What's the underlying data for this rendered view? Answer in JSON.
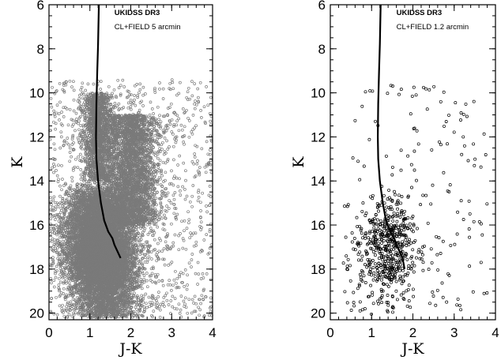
{
  "chart_data": [
    {
      "type": "scatter",
      "title": "",
      "annotation_line1": "UKIDSS DR3",
      "annotation_line2": "CL+FIELD 5 arcmin",
      "xlabel": "J-K",
      "ylabel": "K",
      "xlim": [
        0,
        4
      ],
      "ylim": [
        20.3,
        6
      ],
      "y_inverted": true,
      "x_ticks": [
        "0",
        "1",
        "2",
        "3",
        "4"
      ],
      "y_ticks": [
        "6",
        "8",
        "10",
        "12",
        "14",
        "16",
        "18",
        "20"
      ],
      "grid": false,
      "marker_color": "#7a7a7a",
      "isochrone": {
        "x": [
          1.22,
          1.2,
          1.18,
          1.16,
          1.15,
          1.16,
          1.2,
          1.27,
          1.35,
          1.45,
          1.55,
          1.6,
          1.65,
          1.7,
          1.75
        ],
        "y": [
          6,
          7.8,
          9.0,
          10.5,
          12.0,
          13.0,
          14.0,
          15.0,
          15.8,
          16.3,
          16.6,
          16.9,
          17.1,
          17.3,
          17.5
        ]
      },
      "approx_points": 15000
    },
    {
      "type": "scatter",
      "title": "",
      "annotation_line1": "UKIDSS DR3",
      "annotation_line2": "CL+FIELD 1.2 arcmin",
      "xlabel": "J-K",
      "ylabel": "K",
      "xlim": [
        0,
        4
      ],
      "ylim": [
        20.3,
        6
      ],
      "y_inverted": true,
      "x_ticks": [
        "0",
        "1",
        "2",
        "3",
        "4"
      ],
      "y_ticks": [
        "6",
        "8",
        "10",
        "12",
        "14",
        "16",
        "18",
        "20"
      ],
      "grid": false,
      "marker_color": "#000000",
      "isochrone": {
        "x": [
          1.22,
          1.2,
          1.18,
          1.16,
          1.15,
          1.16,
          1.2,
          1.27,
          1.35,
          1.45,
          1.55,
          1.6,
          1.65,
          1.7,
          1.75,
          1.8
        ],
        "y": [
          6,
          7.8,
          9.0,
          10.5,
          12.0,
          13.0,
          14.0,
          15.0,
          15.8,
          16.3,
          16.6,
          16.9,
          17.1,
          17.3,
          17.5,
          18.0
        ]
      },
      "approx_points": 700
    }
  ]
}
